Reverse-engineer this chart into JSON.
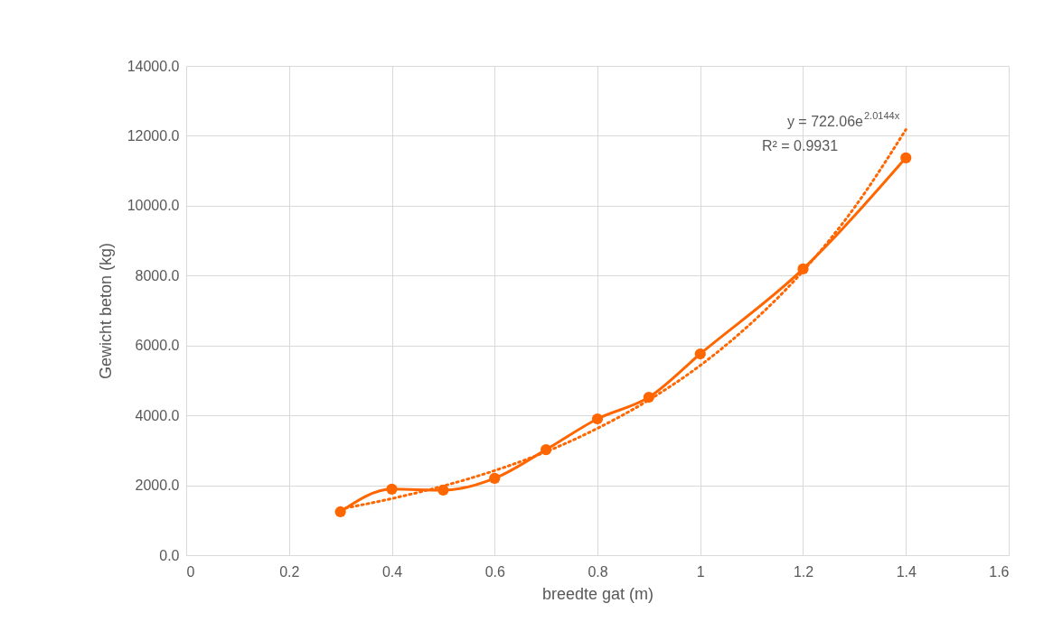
{
  "chart_data": {
    "type": "line",
    "xlabel": "breedte gat (m)",
    "ylabel": "Gewicht beton (kg)",
    "xlim": [
      0,
      1.6
    ],
    "xticks": [
      0,
      0.2,
      0.4,
      0.6,
      0.8,
      1,
      1.2,
      1.4,
      1.6
    ],
    "ylim": [
      0,
      14000
    ],
    "yticks": [
      {
        "value": 0,
        "label": "0.0"
      },
      {
        "value": 2000,
        "label": "2000.0"
      },
      {
        "value": 4000,
        "label": "4000.0"
      },
      {
        "value": 6000,
        "label": "6000.0"
      },
      {
        "value": 8000,
        "label": "8000.0"
      },
      {
        "value": 10000,
        "label": "10000.0"
      },
      {
        "value": 12000,
        "label": "12000.0"
      },
      {
        "value": 14000,
        "label": "14000.0"
      }
    ],
    "grid": true,
    "series": [
      {
        "color": "#ff6600",
        "marker": "circle",
        "line_style": "solid",
        "x": [
          0.3,
          0.4,
          0.5,
          0.6,
          0.7,
          0.8,
          0.9,
          1,
          1.2,
          1.4
        ],
        "values": [
          1240,
          1890,
          1860,
          2200,
          3020,
          3900,
          4520,
          5760,
          8190,
          11370
        ]
      },
      {
        "type": "line",
        "color": "#ff6600",
        "marker": "none",
        "line_style": "dotted",
        "x": [
          0.3,
          0.4,
          0.5,
          0.6,
          0.7,
          0.8,
          0.9,
          1,
          1.1,
          1.2,
          1.3,
          1.4
        ],
        "values": [
          1320,
          1620,
          1980,
          2420,
          2960,
          3630,
          4440,
          5430,
          6650,
          8130,
          9950,
          12180
        ]
      }
    ],
    "annotations": [
      "y = 722.06e$^{2.0144x}$",
      "R² = 0.9931"
    ]
  }
}
